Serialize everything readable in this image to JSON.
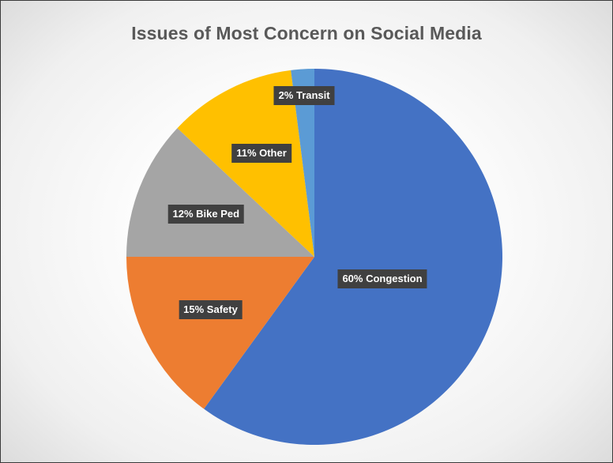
{
  "chart_data": {
    "type": "pie",
    "title": "Issues of Most Concern on Social Media",
    "slices": [
      {
        "category": "Congestion",
        "value": 60,
        "label": "60% Congestion",
        "color": "#4472C4"
      },
      {
        "category": "Safety",
        "value": 15,
        "label": "15% Safety",
        "color": "#ED7D31"
      },
      {
        "category": "Bike Ped",
        "value": 12,
        "label": "12% Bike Ped",
        "color": "#A5A5A5"
      },
      {
        "category": "Other",
        "value": 11,
        "label": "11% Other",
        "color": "#FFC000"
      },
      {
        "category": "Transit",
        "value": 2,
        "label": "2% Transit",
        "color": "#5B9BD5"
      }
    ],
    "start_position": "top",
    "direction": "clockwise",
    "legend": "none",
    "data_label_style": "dark boxes"
  }
}
